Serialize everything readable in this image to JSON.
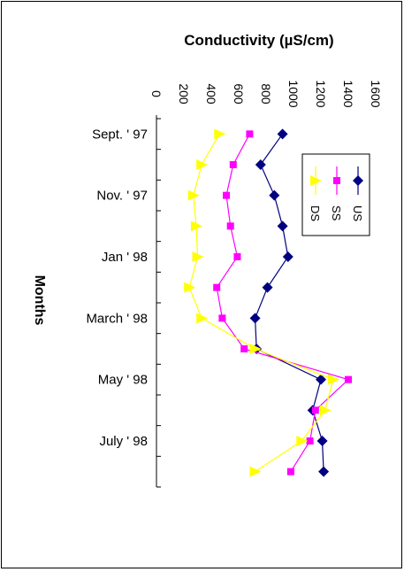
{
  "chart_data": {
    "type": "line",
    "title": "Conductivity (µS/cm)",
    "xlabel": "",
    "ylabel": "Months",
    "orientation": "rotated: months run downward, conductivity increases to the right",
    "xlim": [
      0,
      1600
    ],
    "x_ticks": [
      "0",
      "200",
      "400",
      "600",
      "800",
      "1000",
      "1200",
      "1400",
      "1600"
    ],
    "category_labels": [
      "Sept. ' 97",
      "Nov. ' 97",
      "Jan ' 98",
      "March ' 98",
      "May ' 98",
      "July ' 98"
    ],
    "series": [
      {
        "name": "US",
        "color": "#000080",
        "marker": "diamond",
        "values": [
          920,
          760,
          860,
          920,
          960,
          810,
          720,
          730,
          1200,
          1140,
          1210,
          1220
        ]
      },
      {
        "name": "SS",
        "color": "#ff00ff",
        "marker": "square",
        "values": [
          680,
          560,
          510,
          540,
          590,
          440,
          480,
          640,
          1400,
          1160,
          1120,
          980
        ]
      },
      {
        "name": "DS",
        "color": "#ffff00",
        "marker": "triangle",
        "values": [
          460,
          330,
          270,
          290,
          300,
          240,
          330,
          720,
          1290,
          1230,
          1060,
          720
        ]
      }
    ],
    "legend_position": "upper right of plot",
    "grid": false
  }
}
